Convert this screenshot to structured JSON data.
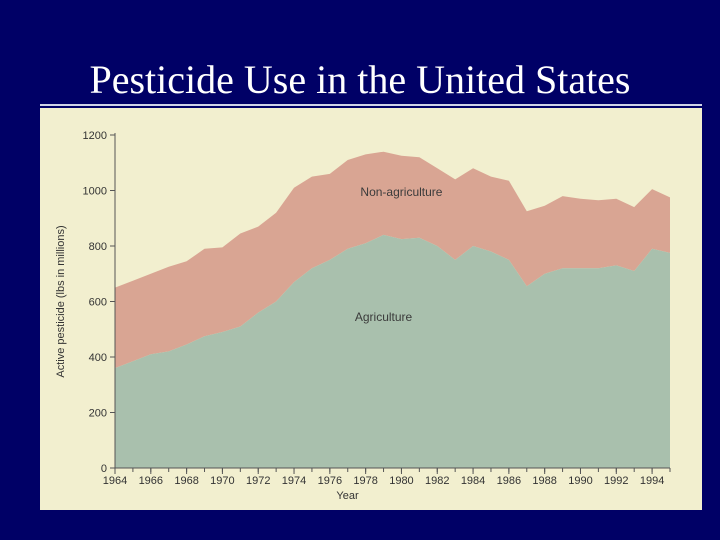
{
  "slide": {
    "title": "Pesticide Use in the United States"
  },
  "colors": {
    "background": "#000066",
    "panel": "#f2efcf",
    "agriculture": "#a9c0ad",
    "non_agriculture": "#d9a593",
    "title_text": "#ffffff"
  },
  "chart_data": {
    "type": "area",
    "stacked": true,
    "title": "",
    "xlabel": "Year",
    "ylabel": "Active pesticide (lbs in millions)",
    "xlim": [
      1964,
      1995
    ],
    "ylim": [
      0,
      1200
    ],
    "grid": false,
    "x_ticks": [
      "1964",
      "1966",
      "1968",
      "1970",
      "1972",
      "1974",
      "1976",
      "1978",
      "1980",
      "1982",
      "1984",
      "1986",
      "1988",
      "1990",
      "1992",
      "1994"
    ],
    "y_ticks": [
      "0",
      "200",
      "400",
      "600",
      "800",
      "1000",
      "1200"
    ],
    "x": [
      1964,
      1965,
      1966,
      1967,
      1968,
      1969,
      1970,
      1971,
      1972,
      1973,
      1974,
      1975,
      1976,
      1977,
      1978,
      1979,
      1980,
      1981,
      1982,
      1983,
      1984,
      1985,
      1986,
      1987,
      1988,
      1989,
      1990,
      1991,
      1992,
      1993,
      1994,
      1995
    ],
    "series": [
      {
        "name": "Agriculture",
        "values": [
          360,
          385,
          410,
          420,
          445,
          475,
          490,
          510,
          560,
          600,
          670,
          720,
          750,
          790,
          810,
          840,
          825,
          830,
          800,
          750,
          800,
          780,
          750,
          655,
          700,
          720,
          720,
          720,
          730,
          710,
          790,
          775
        ]
      },
      {
        "name": "Non-agriculture",
        "values": [
          290,
          290,
          290,
          305,
          300,
          315,
          305,
          335,
          310,
          320,
          340,
          330,
          310,
          320,
          320,
          300,
          300,
          290,
          280,
          290,
          280,
          270,
          285,
          270,
          245,
          260,
          250,
          245,
          240,
          230,
          215,
          200
        ]
      }
    ],
    "area_labels": [
      "Non-agriculture",
      "Agriculture"
    ],
    "area_label_positions": [
      [
        1980,
        980
      ],
      [
        1979,
        530
      ]
    ]
  }
}
